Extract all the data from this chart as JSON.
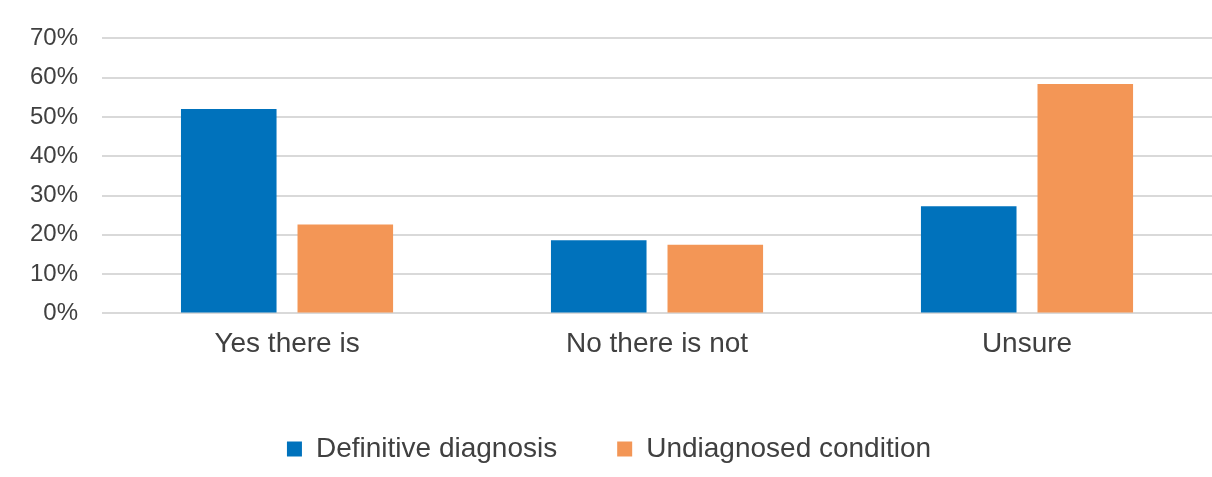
{
  "chart_data": {
    "type": "bar",
    "categories": [
      "Yes there is",
      "No there is not",
      "Unsure"
    ],
    "series": [
      {
        "name": "Definitive diagnosis",
        "color": "#0072bc",
        "values": [
          52.0,
          18.6,
          27.3
        ]
      },
      {
        "name": "Undiagnosed condition",
        "color": "#f39656",
        "values": [
          22.6,
          17.5,
          58.4
        ]
      }
    ],
    "ylim": [
      0,
      70
    ],
    "yticks": [
      {
        "value": 0,
        "label": "0%"
      },
      {
        "value": 10,
        "label": "10%"
      },
      {
        "value": 20,
        "label": "20%"
      },
      {
        "value": 30,
        "label": "30%"
      },
      {
        "value": 40,
        "label": "40%"
      },
      {
        "value": 50,
        "label": "50%"
      },
      {
        "value": 60,
        "label": "60%"
      },
      {
        "value": 70,
        "label": "70%"
      }
    ],
    "grid": "y",
    "legend": "bottom"
  }
}
